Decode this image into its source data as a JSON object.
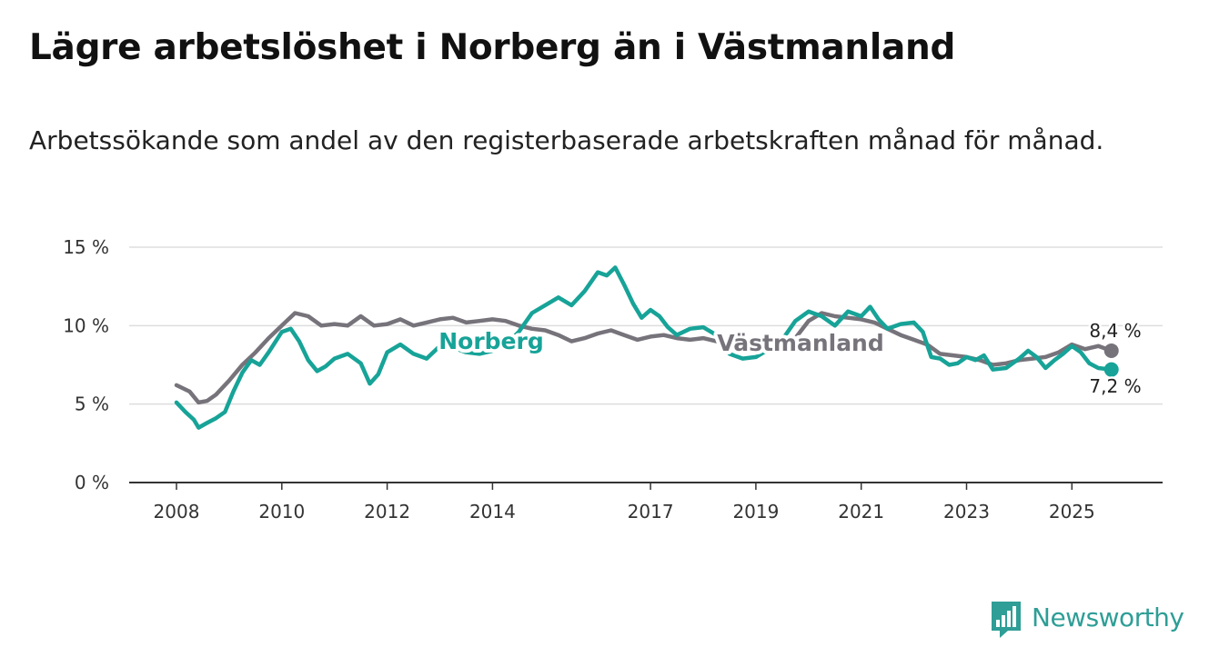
{
  "header": {
    "title": "Lägre arbetslöshet i Norberg än i Västmanland",
    "subtitle": "Arbetssökande som andel av den registerbaserade arbetskraften månad för månad."
  },
  "logo": {
    "text": "Newsworthy"
  },
  "chart_data": {
    "type": "line",
    "title": "Lägre arbetslöshet i Norberg än i Västmanland",
    "subtitle": "Arbetssökande som andel av den registerbaserade arbetskraften månad för månad.",
    "xlabel": "",
    "ylabel": "",
    "xlim": [
      2007.8,
      2026.5
    ],
    "ylim": [
      0,
      15
    ],
    "grid": true,
    "x_ticks": [
      2008,
      2010,
      2012,
      2014,
      2017,
      2019,
      2021,
      2023,
      2025
    ],
    "x_tick_labels": [
      "2008",
      "2010",
      "2012",
      "2014",
      "2017",
      "2019",
      "2021",
      "2023",
      "2025"
    ],
    "y_ticks": [
      0,
      5,
      10,
      15
    ],
    "y_tick_labels": [
      "0 %",
      "5 %",
      "10 %",
      "15 %"
    ],
    "series": [
      {
        "name": "Västmanland",
        "label": "Västmanland",
        "color": "#77737b",
        "end_label": "8,4 %",
        "points": [
          [
            2008.0,
            6.2
          ],
          [
            2008.25,
            5.8
          ],
          [
            2008.42,
            5.1
          ],
          [
            2008.58,
            5.2
          ],
          [
            2008.75,
            5.6
          ],
          [
            2009.0,
            6.5
          ],
          [
            2009.25,
            7.5
          ],
          [
            2009.5,
            8.3
          ],
          [
            2009.75,
            9.2
          ],
          [
            2010.0,
            10.0
          ],
          [
            2010.25,
            10.8
          ],
          [
            2010.5,
            10.6
          ],
          [
            2010.75,
            10.0
          ],
          [
            2011.0,
            10.1
          ],
          [
            2011.25,
            10.0
          ],
          [
            2011.5,
            10.6
          ],
          [
            2011.75,
            10.0
          ],
          [
            2012.0,
            10.1
          ],
          [
            2012.25,
            10.4
          ],
          [
            2012.5,
            10.0
          ],
          [
            2012.75,
            10.2
          ],
          [
            2013.0,
            10.4
          ],
          [
            2013.25,
            10.5
          ],
          [
            2013.5,
            10.2
          ],
          [
            2013.75,
            10.3
          ],
          [
            2014.0,
            10.4
          ],
          [
            2014.25,
            10.3
          ],
          [
            2014.5,
            10.0
          ],
          [
            2014.75,
            9.8
          ],
          [
            2015.0,
            9.7
          ],
          [
            2015.25,
            9.4
          ],
          [
            2015.5,
            9.0
          ],
          [
            2015.75,
            9.2
          ],
          [
            2016.0,
            9.5
          ],
          [
            2016.25,
            9.7
          ],
          [
            2016.5,
            9.4
          ],
          [
            2016.75,
            9.1
          ],
          [
            2017.0,
            9.3
          ],
          [
            2017.25,
            9.4
          ],
          [
            2017.5,
            9.2
          ],
          [
            2017.75,
            9.1
          ],
          [
            2018.0,
            9.2
          ],
          [
            2018.25,
            9.0
          ],
          [
            2018.5,
            8.8
          ],
          [
            2018.75,
            8.7
          ],
          [
            2019.0,
            8.5
          ],
          [
            2019.25,
            8.4
          ],
          [
            2019.5,
            8.6
          ],
          [
            2019.75,
            9.2
          ],
          [
            2020.0,
            10.3
          ],
          [
            2020.25,
            10.8
          ],
          [
            2020.5,
            10.6
          ],
          [
            2020.75,
            10.5
          ],
          [
            2021.0,
            10.4
          ],
          [
            2021.25,
            10.2
          ],
          [
            2021.5,
            9.8
          ],
          [
            2021.75,
            9.4
          ],
          [
            2022.0,
            9.1
          ],
          [
            2022.25,
            8.8
          ],
          [
            2022.5,
            8.2
          ],
          [
            2022.75,
            8.1
          ],
          [
            2023.0,
            8.0
          ],
          [
            2023.25,
            7.8
          ],
          [
            2023.5,
            7.5
          ],
          [
            2023.75,
            7.6
          ],
          [
            2024.0,
            7.8
          ],
          [
            2024.25,
            7.9
          ],
          [
            2024.5,
            8.0
          ],
          [
            2024.75,
            8.3
          ],
          [
            2025.0,
            8.8
          ],
          [
            2025.25,
            8.5
          ],
          [
            2025.5,
            8.7
          ],
          [
            2025.75,
            8.4
          ]
        ]
      },
      {
        "name": "Norberg",
        "label": "Norberg",
        "color": "#17a398",
        "end_label": "7,2 %",
        "points": [
          [
            2008.0,
            5.1
          ],
          [
            2008.17,
            4.5
          ],
          [
            2008.33,
            4.0
          ],
          [
            2008.42,
            3.5
          ],
          [
            2008.58,
            3.8
          ],
          [
            2008.75,
            4.1
          ],
          [
            2008.92,
            4.5
          ],
          [
            2009.08,
            5.8
          ],
          [
            2009.25,
            7.0
          ],
          [
            2009.42,
            7.8
          ],
          [
            2009.58,
            7.5
          ],
          [
            2009.75,
            8.3
          ],
          [
            2010.0,
            9.6
          ],
          [
            2010.17,
            9.8
          ],
          [
            2010.33,
            9.0
          ],
          [
            2010.5,
            7.8
          ],
          [
            2010.67,
            7.1
          ],
          [
            2010.83,
            7.4
          ],
          [
            2011.0,
            7.9
          ],
          [
            2011.25,
            8.2
          ],
          [
            2011.5,
            7.6
          ],
          [
            2011.67,
            6.3
          ],
          [
            2011.83,
            6.9
          ],
          [
            2012.0,
            8.3
          ],
          [
            2012.25,
            8.8
          ],
          [
            2012.5,
            8.2
          ],
          [
            2012.75,
            7.9
          ],
          [
            2013.0,
            8.7
          ],
          [
            2013.25,
            8.6
          ],
          [
            2013.5,
            8.3
          ],
          [
            2013.75,
            8.2
          ],
          [
            2014.0,
            8.4
          ],
          [
            2014.25,
            8.8
          ],
          [
            2014.5,
            9.6
          ],
          [
            2014.75,
            10.8
          ],
          [
            2015.0,
            11.3
          ],
          [
            2015.25,
            11.8
          ],
          [
            2015.5,
            11.3
          ],
          [
            2015.75,
            12.2
          ],
          [
            2016.0,
            13.4
          ],
          [
            2016.17,
            13.2
          ],
          [
            2016.33,
            13.7
          ],
          [
            2016.5,
            12.6
          ],
          [
            2016.67,
            11.4
          ],
          [
            2016.83,
            10.5
          ],
          [
            2017.0,
            11.0
          ],
          [
            2017.17,
            10.6
          ],
          [
            2017.33,
            9.9
          ],
          [
            2017.5,
            9.4
          ],
          [
            2017.75,
            9.8
          ],
          [
            2018.0,
            9.9
          ],
          [
            2018.25,
            9.4
          ],
          [
            2018.5,
            8.2
          ],
          [
            2018.75,
            7.9
          ],
          [
            2019.0,
            8.0
          ],
          [
            2019.25,
            8.5
          ],
          [
            2019.5,
            9.1
          ],
          [
            2019.75,
            10.3
          ],
          [
            2020.0,
            10.9
          ],
          [
            2020.25,
            10.6
          ],
          [
            2020.5,
            10.0
          ],
          [
            2020.75,
            10.9
          ],
          [
            2021.0,
            10.6
          ],
          [
            2021.17,
            11.2
          ],
          [
            2021.33,
            10.4
          ],
          [
            2021.5,
            9.8
          ],
          [
            2021.75,
            10.1
          ],
          [
            2022.0,
            10.2
          ],
          [
            2022.17,
            9.6
          ],
          [
            2022.33,
            8.0
          ],
          [
            2022.5,
            7.9
          ],
          [
            2022.67,
            7.5
          ],
          [
            2022.83,
            7.6
          ],
          [
            2023.0,
            8.0
          ],
          [
            2023.17,
            7.8
          ],
          [
            2023.33,
            8.1
          ],
          [
            2023.5,
            7.2
          ],
          [
            2023.75,
            7.3
          ],
          [
            2024.0,
            7.9
          ],
          [
            2024.17,
            8.4
          ],
          [
            2024.33,
            8.0
          ],
          [
            2024.5,
            7.3
          ],
          [
            2024.67,
            7.8
          ],
          [
            2024.83,
            8.2
          ],
          [
            2025.0,
            8.7
          ],
          [
            2025.17,
            8.3
          ],
          [
            2025.33,
            7.6
          ],
          [
            2025.5,
            7.3
          ],
          [
            2025.75,
            7.2
          ]
        ]
      }
    ]
  }
}
